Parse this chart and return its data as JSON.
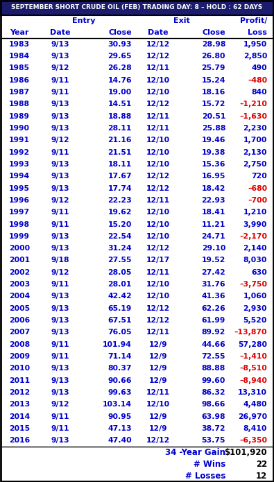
{
  "title": "SEPTEMBER SHORT CRUDE OIL (FEB) TRADING DAY: 8 – HOLD : 62 DAYS",
  "rows": [
    [
      "1983",
      "9/13",
      "30.93",
      "12/12",
      "28.98",
      "1,950"
    ],
    [
      "1984",
      "9/13",
      "29.65",
      "12/12",
      "26.80",
      "2,850"
    ],
    [
      "1985",
      "9/12",
      "26.28",
      "12/11",
      "25.79",
      "490"
    ],
    [
      "1986",
      "9/11",
      "14.76",
      "12/10",
      "15.24",
      "-480"
    ],
    [
      "1987",
      "9/11",
      "19.00",
      "12/10",
      "18.16",
      "840"
    ],
    [
      "1988",
      "9/13",
      "14.51",
      "12/12",
      "15.72",
      "-1,210"
    ],
    [
      "1989",
      "9/13",
      "18.88",
      "12/11",
      "20.51",
      "-1,630"
    ],
    [
      "1990",
      "9/13",
      "28.11",
      "12/11",
      "25.88",
      "2,230"
    ],
    [
      "1991",
      "9/12",
      "21.16",
      "12/10",
      "19.46",
      "1,700"
    ],
    [
      "1992",
      "9/11",
      "21.51",
      "12/10",
      "19.38",
      "2,130"
    ],
    [
      "1993",
      "9/13",
      "18.11",
      "12/10",
      "15.36",
      "2,750"
    ],
    [
      "1994",
      "9/13",
      "17.67",
      "12/12",
      "16.95",
      "720"
    ],
    [
      "1995",
      "9/13",
      "17.74",
      "12/12",
      "18.42",
      "-680"
    ],
    [
      "1996",
      "9/12",
      "22.23",
      "12/11",
      "22.93",
      "-700"
    ],
    [
      "1997",
      "9/11",
      "19.62",
      "12/10",
      "18.41",
      "1,210"
    ],
    [
      "1998",
      "9/11",
      "15.20",
      "12/10",
      "11.21",
      "3,990"
    ],
    [
      "1999",
      "9/13",
      "22.54",
      "12/10",
      "24.71",
      "-2,170"
    ],
    [
      "2000",
      "9/13",
      "31.24",
      "12/12",
      "29.10",
      "2,140"
    ],
    [
      "2001",
      "9/18",
      "27.55",
      "12/17",
      "19.52",
      "8,030"
    ],
    [
      "2002",
      "9/12",
      "28.05",
      "12/11",
      "27.42",
      "630"
    ],
    [
      "2003",
      "9/11",
      "28.01",
      "12/10",
      "31.76",
      "-3,750"
    ],
    [
      "2004",
      "9/13",
      "42.42",
      "12/10",
      "41.36",
      "1,060"
    ],
    [
      "2005",
      "9/13",
      "65.19",
      "12/12",
      "62.26",
      "2,930"
    ],
    [
      "2006",
      "9/13",
      "67.51",
      "12/12",
      "61.99",
      "5,520"
    ],
    [
      "2007",
      "9/13",
      "76.05",
      "12/11",
      "89.92",
      "-13,870"
    ],
    [
      "2008",
      "9/11",
      "101.94",
      "12/9",
      "44.66",
      "57,280"
    ],
    [
      "2009",
      "9/11",
      "71.14",
      "12/9",
      "72.55",
      "-1,410"
    ],
    [
      "2010",
      "9/13",
      "80.37",
      "12/9",
      "88.88",
      "-8,510"
    ],
    [
      "2011",
      "9/13",
      "90.66",
      "12/9",
      "99.60",
      "-8,940"
    ],
    [
      "2012",
      "9/13",
      "99.63",
      "12/11",
      "86.32",
      "13,310"
    ],
    [
      "2013",
      "9/12",
      "103.14",
      "12/10",
      "98.66",
      "4,480"
    ],
    [
      "2014",
      "9/11",
      "90.95",
      "12/9",
      "63.98",
      "26,970"
    ],
    [
      "2015",
      "9/11",
      "47.13",
      "12/9",
      "38.72",
      "8,410"
    ],
    [
      "2016",
      "9/13",
      "47.40",
      "12/12",
      "53.75",
      "-6,350"
    ]
  ],
  "summary_labels": [
    "34 -Year Gain",
    "# Wins",
    "# Losses"
  ],
  "summary_values": [
    "$101,920",
    "22",
    "12"
  ],
  "title_bg": "#1c1c6e",
  "title_fg": "#ffffff",
  "header_fg": "#0000cc",
  "row_fg": "#0000cc",
  "neg_fg": "#dd0000",
  "border_color": "#000000",
  "bg_color": "#ffffff",
  "title_fontsize": 6.5,
  "header_fontsize": 8.0,
  "data_fontsize": 7.8,
  "summary_fontsize": 8.5
}
